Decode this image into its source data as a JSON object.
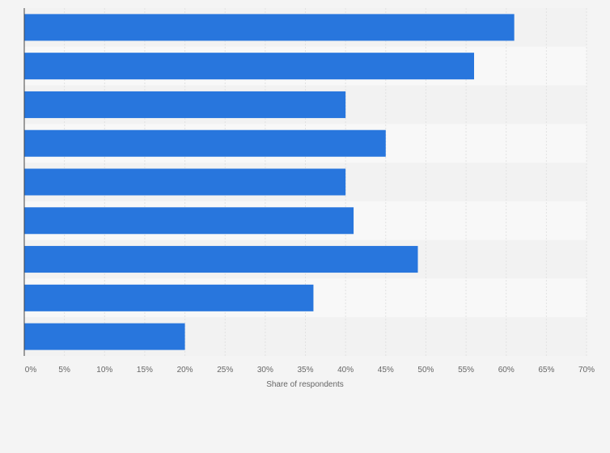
{
  "chart_data": {
    "type": "bar",
    "orientation": "horizontal",
    "categories": [
      "",
      "",
      "",
      "",
      "",
      "",
      "",
      "",
      ""
    ],
    "values": [
      61,
      56,
      40,
      45,
      40,
      41,
      49,
      36,
      20
    ],
    "unit": "%",
    "xlabel": "Share of respondents",
    "ylabel": "",
    "xlim": [
      0,
      70
    ],
    "ticks": [
      "0%",
      "5%",
      "10%",
      "15%",
      "20%",
      "25%",
      "30%",
      "35%",
      "40%",
      "45%",
      "50%",
      "55%",
      "60%",
      "65%",
      "70%"
    ],
    "grid": true,
    "legend": "none",
    "colors": {
      "bar": "#2876dd",
      "band_dark": "#f2f2f2",
      "band_light": "#f8f8f8",
      "grid": "#e2e2e2",
      "axis": "#444444",
      "background": "#f4f4f4"
    }
  }
}
